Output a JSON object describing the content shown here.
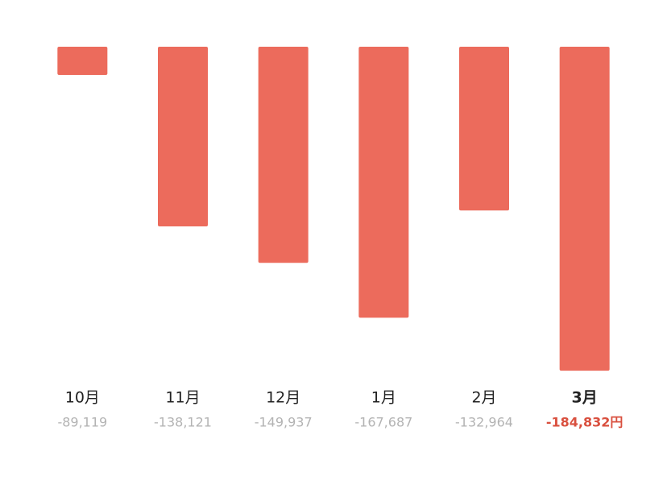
{
  "chart_data": {
    "type": "bar",
    "categories": [
      "10月",
      "11月",
      "12月",
      "1月",
      "2月",
      "3月"
    ],
    "values": [
      -89119,
      -138121,
      -149937,
      -167687,
      -132964,
      -184832
    ],
    "value_labels": [
      "-89,119",
      "-138,121",
      "-149,937",
      "-167,687",
      "-132,964",
      "-184,832円"
    ],
    "color": "#ec6b5c",
    "highlight": 5,
    "highlight_color": "#d9503f",
    "ylim": [
      -190000,
      -80000
    ]
  }
}
